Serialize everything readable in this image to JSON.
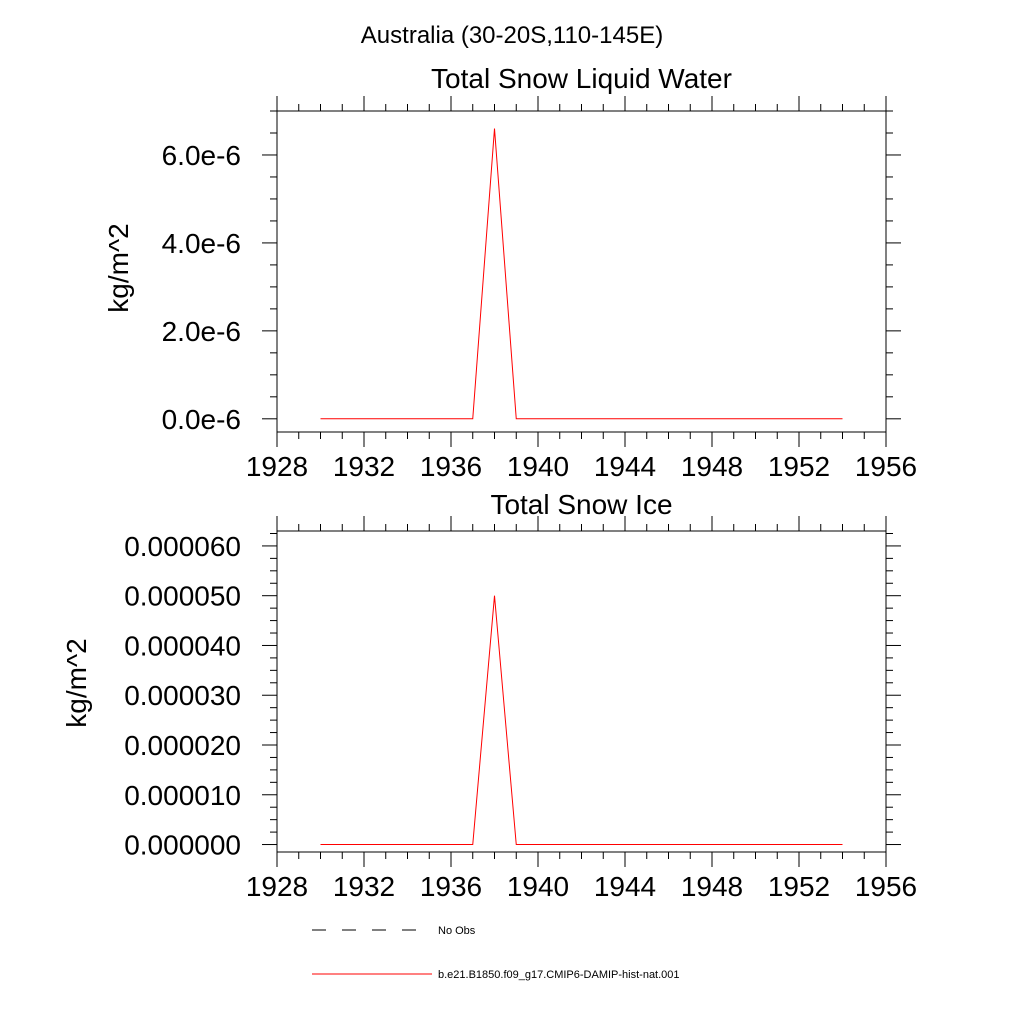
{
  "page": {
    "title": "Australia (30-20S,110-145E)"
  },
  "legend": {
    "placement": "bottom",
    "entries": [
      {
        "label": "No Obs",
        "color": "#000000",
        "style": "dashed"
      },
      {
        "label": "b.e21.B1850.f09_g17.CMIP6-DAMIP-hist-nat.001",
        "color": "#ff0000",
        "style": "solid"
      }
    ]
  },
  "chart_data": [
    {
      "type": "line",
      "title": "Total Snow Liquid Water",
      "xlabel": "",
      "ylabel": "kg/m^2",
      "xlim": [
        1928,
        1956
      ],
      "ylim": [
        -3e-07,
        7e-06
      ],
      "xticks": [
        1928,
        1932,
        1936,
        1940,
        1944,
        1948,
        1952,
        1956
      ],
      "xtick_labels": [
        "1928",
        "1932",
        "1936",
        "1940",
        "1944",
        "1948",
        "1952",
        "1956"
      ],
      "yticks": [
        0,
        2e-06,
        4e-06,
        6e-06
      ],
      "ytick_labels": [
        "0.0e-6",
        "2.0e-6",
        "4.0e-6",
        "6.0e-6"
      ],
      "grid": false,
      "series": [
        {
          "name": "b.e21.B1850.f09_g17.CMIP6-DAMIP-hist-nat.001",
          "color": "#ff0000",
          "x": [
            1930,
            1931,
            1932,
            1933,
            1934,
            1935,
            1936,
            1937,
            1938,
            1939,
            1940,
            1941,
            1942,
            1943,
            1944,
            1945,
            1946,
            1947,
            1948,
            1949,
            1950,
            1951,
            1952,
            1953,
            1954
          ],
          "y": [
            0,
            0,
            0,
            0,
            0,
            0,
            0,
            0,
            6.6e-06,
            0,
            0,
            0,
            0,
            0,
            0,
            0,
            0,
            0,
            0,
            0,
            0,
            0,
            0,
            0,
            0
          ]
        }
      ]
    },
    {
      "type": "line",
      "title": "Total Snow Ice",
      "xlabel": "",
      "ylabel": "kg/m^2",
      "xlim": [
        1928,
        1956
      ],
      "ylim": [
        -1.5e-06,
        6.3e-05
      ],
      "xticks": [
        1928,
        1932,
        1936,
        1940,
        1944,
        1948,
        1952,
        1956
      ],
      "xtick_labels": [
        "1928",
        "1932",
        "1936",
        "1940",
        "1944",
        "1948",
        "1952",
        "1956"
      ],
      "yticks": [
        0,
        1e-05,
        2e-05,
        3e-05,
        4e-05,
        5e-05,
        6e-05
      ],
      "ytick_labels": [
        "0.000000",
        "0.000010",
        "0.000020",
        "0.000030",
        "0.000040",
        "0.000050",
        "0.000060"
      ],
      "grid": false,
      "series": [
        {
          "name": "b.e21.B1850.f09_g17.CMIP6-DAMIP-hist-nat.001",
          "color": "#ff0000",
          "x": [
            1930,
            1931,
            1932,
            1933,
            1934,
            1935,
            1936,
            1937,
            1938,
            1939,
            1940,
            1941,
            1942,
            1943,
            1944,
            1945,
            1946,
            1947,
            1948,
            1949,
            1950,
            1951,
            1952,
            1953,
            1954
          ],
          "y": [
            0,
            0,
            0,
            0,
            0,
            0,
            0,
            0,
            5e-05,
            0,
            0,
            0,
            0,
            0,
            0,
            0,
            0,
            0,
            0,
            0,
            0,
            0,
            0,
            0,
            0
          ]
        }
      ]
    }
  ]
}
